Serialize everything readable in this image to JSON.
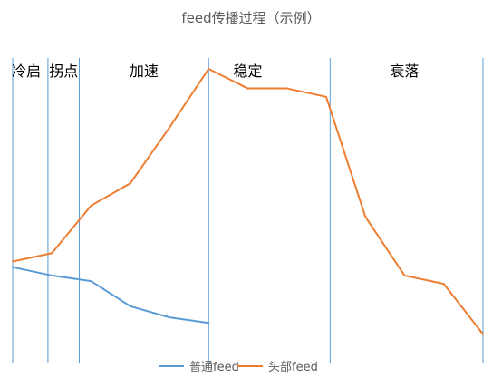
{
  "chart_data": {
    "type": "line",
    "title": "feed传播过程（示例）",
    "xlabel": "",
    "ylabel": "",
    "grid": false,
    "legend_position": "bottom",
    "x": [
      1,
      2,
      3,
      4,
      5,
      6,
      7,
      8,
      9,
      10,
      11,
      12,
      13
    ],
    "ylim": [
      0,
      100
    ],
    "series": [
      {
        "name": "普通feed",
        "color": "#5B9BD5",
        "values": [
          29,
          26,
          24,
          15,
          11,
          9,
          null,
          null,
          null,
          null,
          null,
          null,
          null
        ]
      },
      {
        "name": "头部feed",
        "color": "#ED7D31",
        "values": [
          31,
          34,
          51,
          59,
          79,
          100,
          93,
          93,
          90,
          47,
          26,
          23,
          5
        ]
      }
    ],
    "phase_dividers": [
      1,
      1.9,
      2.7,
      6,
      9.1,
      13
    ],
    "phases": [
      {
        "label": "冷启",
        "x": 1.35
      },
      {
        "label": "拐点",
        "x": 2.3
      },
      {
        "label": "加速",
        "x": 4.35
      },
      {
        "label": "稳定",
        "x": 7.0
      },
      {
        "label": "衰落",
        "x": 11.0
      }
    ]
  }
}
